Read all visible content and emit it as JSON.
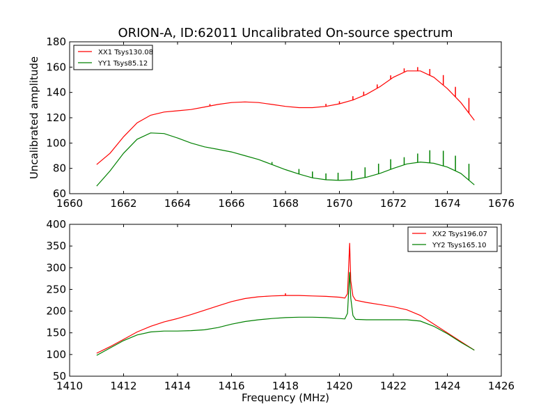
{
  "chart_data": [
    {
      "type": "line",
      "title": "ORION-A, ID:62011 Uncalibrated On-source spectrum",
      "xlabel": "",
      "ylabel": "Uncalibrated amplitude",
      "xlim": [
        1660,
        1676
      ],
      "ylim": [
        60,
        180
      ],
      "xticks": [
        1660,
        1662,
        1664,
        1666,
        1668,
        1670,
        1672,
        1674,
        1676
      ],
      "yticks": [
        60,
        80,
        100,
        120,
        140,
        160,
        180
      ],
      "grid": false,
      "legend_position": "top-left",
      "series": [
        {
          "name": "XX1 Tsys130.08",
          "color": "#ff0000",
          "x": [
            1661.0,
            1661.5,
            1662.0,
            1662.5,
            1663.0,
            1663.5,
            1664.0,
            1664.5,
            1665.0,
            1665.5,
            1666.0,
            1666.5,
            1667.0,
            1667.5,
            1668.0,
            1668.5,
            1669.0,
            1669.5,
            1670.0,
            1670.5,
            1671.0,
            1671.5,
            1672.0,
            1672.5,
            1673.0,
            1673.5,
            1674.0,
            1674.5,
            1675.0
          ],
          "y": [
            83,
            92,
            105,
            116,
            122,
            124.5,
            125.5,
            126.5,
            128.5,
            130.5,
            132,
            132.5,
            132,
            130.5,
            129,
            128,
            128,
            129,
            131,
            134,
            138.5,
            144.5,
            152,
            157,
            157,
            152,
            143,
            132,
            118
          ]
        },
        {
          "name": "YY1 Tsys85.12",
          "color": "#008000",
          "x": [
            1661.0,
            1661.5,
            1662.0,
            1662.5,
            1663.0,
            1663.5,
            1664.0,
            1664.5,
            1665.0,
            1665.5,
            1666.0,
            1666.5,
            1667.0,
            1667.5,
            1668.0,
            1668.5,
            1669.0,
            1669.5,
            1670.0,
            1670.5,
            1671.0,
            1671.5,
            1672.0,
            1672.5,
            1673.0,
            1673.5,
            1674.0,
            1674.5,
            1675.0
          ],
          "y": [
            66,
            78,
            92,
            103,
            108,
            107.5,
            104,
            100,
            97,
            95,
            93,
            90,
            87,
            83,
            79,
            75.5,
            72.5,
            71,
            70.5,
            71,
            73,
            76,
            80,
            83.5,
            85,
            84,
            81,
            76,
            67
          ]
        }
      ],
      "spikes": [
        {
          "series": 0,
          "x": 1665.2,
          "height": 1.5
        },
        {
          "series": 0,
          "x": 1669.5,
          "height": 2
        },
        {
          "series": 0,
          "x": 1670.0,
          "height": 2
        },
        {
          "series": 0,
          "x": 1670.5,
          "height": 3
        },
        {
          "series": 0,
          "x": 1670.9,
          "height": 3
        },
        {
          "series": 0,
          "x": 1671.4,
          "height": 3
        },
        {
          "series": 0,
          "x": 1671.9,
          "height": 3
        },
        {
          "series": 0,
          "x": 1672.4,
          "height": 3
        },
        {
          "series": 0,
          "x": 1672.9,
          "height": 3
        },
        {
          "series": 0,
          "x": 1673.35,
          "height": 5
        },
        {
          "series": 0,
          "x": 1673.85,
          "height": 8
        },
        {
          "series": 0,
          "x": 1674.3,
          "height": 8
        },
        {
          "series": 0,
          "x": 1674.8,
          "height": 12
        },
        {
          "series": 1,
          "x": 1667.5,
          "height": 2
        },
        {
          "series": 1,
          "x": 1668.5,
          "height": 4
        },
        {
          "series": 1,
          "x": 1669.0,
          "height": 5
        },
        {
          "series": 1,
          "x": 1669.5,
          "height": 5
        },
        {
          "series": 1,
          "x": 1669.95,
          "height": 6
        },
        {
          "series": 1,
          "x": 1670.45,
          "height": 7
        },
        {
          "series": 1,
          "x": 1670.95,
          "height": 8
        },
        {
          "series": 1,
          "x": 1671.45,
          "height": 8
        },
        {
          "series": 1,
          "x": 1671.9,
          "height": 8
        },
        {
          "series": 1,
          "x": 1672.4,
          "height": 6
        },
        {
          "series": 1,
          "x": 1672.9,
          "height": 7
        },
        {
          "series": 1,
          "x": 1673.35,
          "height": 10
        },
        {
          "series": 1,
          "x": 1673.85,
          "height": 12
        },
        {
          "series": 1,
          "x": 1674.3,
          "height": 12
        },
        {
          "series": 1,
          "x": 1674.8,
          "height": 13
        }
      ]
    },
    {
      "type": "line",
      "title": "",
      "xlabel": "Frequency (MHz)",
      "ylabel": "",
      "xlim": [
        1410,
        1426
      ],
      "ylim": [
        50,
        400
      ],
      "xticks": [
        1410,
        1412,
        1414,
        1416,
        1418,
        1420,
        1422,
        1424,
        1426
      ],
      "yticks": [
        50,
        100,
        150,
        200,
        250,
        300,
        350,
        400
      ],
      "grid": false,
      "legend_position": "top-right",
      "series": [
        {
          "name": "XX2 Tsys196.07",
          "color": "#ff0000",
          "x": [
            1411.0,
            1411.5,
            1412.0,
            1412.5,
            1413.0,
            1413.5,
            1414.0,
            1414.5,
            1415.0,
            1415.5,
            1416.0,
            1416.5,
            1417.0,
            1417.5,
            1418.0,
            1418.5,
            1419.0,
            1419.5,
            1420.0,
            1420.2,
            1420.3,
            1420.38,
            1420.42,
            1420.5,
            1420.6,
            1421.0,
            1421.5,
            1422.0,
            1422.5,
            1423.0,
            1423.5,
            1424.0,
            1424.5,
            1425.0
          ],
          "y": [
            103,
            118,
            135,
            152,
            165,
            175,
            183,
            192,
            202,
            212,
            222,
            229,
            233,
            235,
            236,
            236,
            235,
            234,
            232,
            230,
            240,
            357,
            270,
            235,
            225,
            220,
            215,
            210,
            203,
            190,
            170,
            150,
            130,
            110
          ]
        },
        {
          "name": "YY2 Tsys165.10",
          "color": "#008000",
          "x": [
            1411.0,
            1411.5,
            1412.0,
            1412.5,
            1413.0,
            1413.5,
            1414.0,
            1414.5,
            1415.0,
            1415.5,
            1416.0,
            1416.5,
            1417.0,
            1417.5,
            1418.0,
            1418.5,
            1419.0,
            1419.5,
            1420.0,
            1420.2,
            1420.3,
            1420.38,
            1420.42,
            1420.5,
            1420.6,
            1421.0,
            1421.5,
            1422.0,
            1422.5,
            1423.0,
            1423.5,
            1424.0,
            1424.5,
            1425.0
          ],
          "y": [
            98,
            115,
            132,
            145,
            152,
            154,
            154,
            155,
            157,
            162,
            170,
            176,
            180,
            183,
            185,
            186,
            186,
            185,
            183,
            182,
            195,
            290,
            230,
            190,
            181,
            180,
            180,
            180,
            180,
            177,
            165,
            148,
            128,
            110
          ]
        }
      ],
      "spikes": [
        {
          "series": 0,
          "x": 1418.0,
          "height": 5
        }
      ]
    }
  ]
}
